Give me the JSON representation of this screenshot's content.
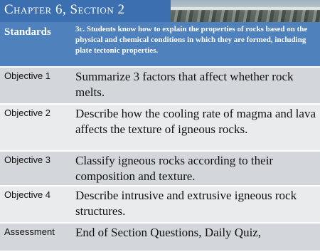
{
  "header": {
    "title": "Chapter 6, Section 2"
  },
  "table": {
    "rows": [
      [
        "Standards",
        "3c. Students know how to explain the properties of rocks based on the physical and chemical conditions in which they are formed, including plate tectonic properties."
      ],
      [
        "Objective 1",
        "Summarize 3 factors that affect whether rock melts."
      ],
      [
        "Objective 2",
        "Describe how the cooling rate of magma and lava affects the texture of igneous rocks."
      ],
      [
        "Objective 3",
        "Classify igneous rocks according to their composition and texture."
      ],
      [
        "Objective 4",
        "Describe intrusive and extrusive igneous rock structures."
      ],
      [
        "Assessment",
        "End of Section Questions, Daily Quiz,"
      ]
    ]
  }
}
